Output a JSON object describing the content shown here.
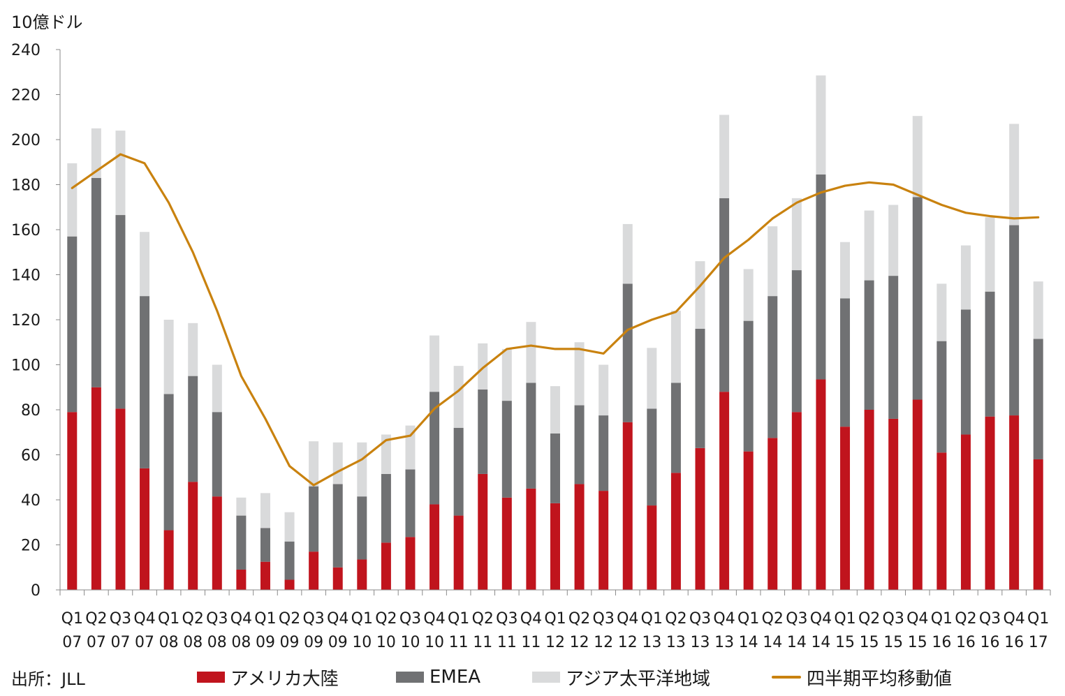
{
  "source": "出所：JLL",
  "colors": {
    "americas": "#C0141D",
    "emea": "#707173",
    "apac": "#D9DADB",
    "average": "#C9820F"
  },
  "chart_data": {
    "type": "bar",
    "stacked": true,
    "unit_label": "10億ドル",
    "ylim": [
      0,
      240
    ],
    "yticks": [
      0,
      20,
      40,
      60,
      80,
      100,
      120,
      140,
      160,
      180,
      200,
      220,
      240
    ],
    "grid": false,
    "legend_position": "bottom",
    "categories": [
      [
        "Q1",
        "07"
      ],
      [
        "Q2",
        "07"
      ],
      [
        "Q3",
        "07"
      ],
      [
        "Q4",
        "07"
      ],
      [
        "Q1",
        "08"
      ],
      [
        "Q2",
        "08"
      ],
      [
        "Q3",
        "08"
      ],
      [
        "Q4",
        "08"
      ],
      [
        "Q1",
        "09"
      ],
      [
        "Q2",
        "09"
      ],
      [
        "Q3",
        "09"
      ],
      [
        "Q4",
        "09"
      ],
      [
        "Q1",
        "10"
      ],
      [
        "Q2",
        "10"
      ],
      [
        "Q3",
        "10"
      ],
      [
        "Q4",
        "10"
      ],
      [
        "Q1",
        "11"
      ],
      [
        "Q2",
        "11"
      ],
      [
        "Q3",
        "11"
      ],
      [
        "Q4",
        "11"
      ],
      [
        "Q1",
        "12"
      ],
      [
        "Q2",
        "12"
      ],
      [
        "Q3",
        "12"
      ],
      [
        "Q4",
        "12"
      ],
      [
        "Q1",
        "13"
      ],
      [
        "Q2",
        "13"
      ],
      [
        "Q3",
        "13"
      ],
      [
        "Q4",
        "13"
      ],
      [
        "Q1",
        "14"
      ],
      [
        "Q2",
        "14"
      ],
      [
        "Q3",
        "14"
      ],
      [
        "Q4",
        "14"
      ],
      [
        "Q1",
        "15"
      ],
      [
        "Q2",
        "15"
      ],
      [
        "Q3",
        "15"
      ],
      [
        "Q4",
        "15"
      ],
      [
        "Q1",
        "16"
      ],
      [
        "Q2",
        "16"
      ],
      [
        "Q3",
        "16"
      ],
      [
        "Q4",
        "16"
      ],
      [
        "Q1",
        "17"
      ]
    ],
    "series": [
      {
        "name": "アメリカ大陸",
        "kind": "bar",
        "values": [
          79,
          90,
          80.5,
          54,
          26.5,
          48,
          41.5,
          9,
          12.5,
          4.5,
          17,
          10,
          13.5,
          21,
          23.5,
          38,
          33,
          51.5,
          41,
          45,
          38.5,
          47,
          44,
          74.5,
          37.5,
          52,
          63,
          88,
          61.5,
          67.5,
          79,
          93.5,
          72.5,
          80,
          76,
          84.5,
          61,
          69,
          77,
          77.5,
          58
        ]
      },
      {
        "name": "EMEA",
        "kind": "bar",
        "values": [
          78,
          93,
          86,
          76.5,
          60.5,
          47,
          37.5,
          24,
          15,
          17,
          29,
          37,
          28,
          30.5,
          30,
          50,
          39,
          37.5,
          43,
          47,
          31,
          35,
          33.5,
          61.5,
          43,
          40,
          53,
          86,
          58,
          63,
          63,
          91,
          57,
          57.5,
          63.5,
          90,
          49.5,
          55.5,
          55.5,
          84.5,
          53.5
        ]
      },
      {
        "name": "アジア太平洋地域",
        "kind": "bar",
        "values": [
          32.5,
          22,
          37.5,
          28.5,
          33,
          23.5,
          21,
          8,
          15.5,
          13,
          20,
          18.5,
          24,
          17.5,
          19.5,
          25,
          27.5,
          20.5,
          23,
          27,
          21,
          28,
          22.5,
          26.5,
          27,
          32,
          30,
          37,
          23,
          31,
          32,
          44,
          25,
          31,
          31.5,
          36,
          25.5,
          28.5,
          33,
          45,
          25.5
        ]
      },
      {
        "name": "四半期平均移動値",
        "kind": "line",
        "values": [
          178.5,
          186,
          193.5,
          189.5,
          172,
          150,
          124,
          95,
          76,
          55,
          46.5,
          52.5,
          58,
          66.5,
          68.5,
          80.5,
          88.5,
          98.5,
          107,
          108.5,
          107,
          107,
          105,
          115.5,
          120,
          123.5,
          135,
          147.5,
          155.5,
          165,
          172,
          176.5,
          179.5,
          181,
          180,
          175.5,
          171,
          167.5,
          166,
          165,
          165.5
        ]
      }
    ]
  }
}
